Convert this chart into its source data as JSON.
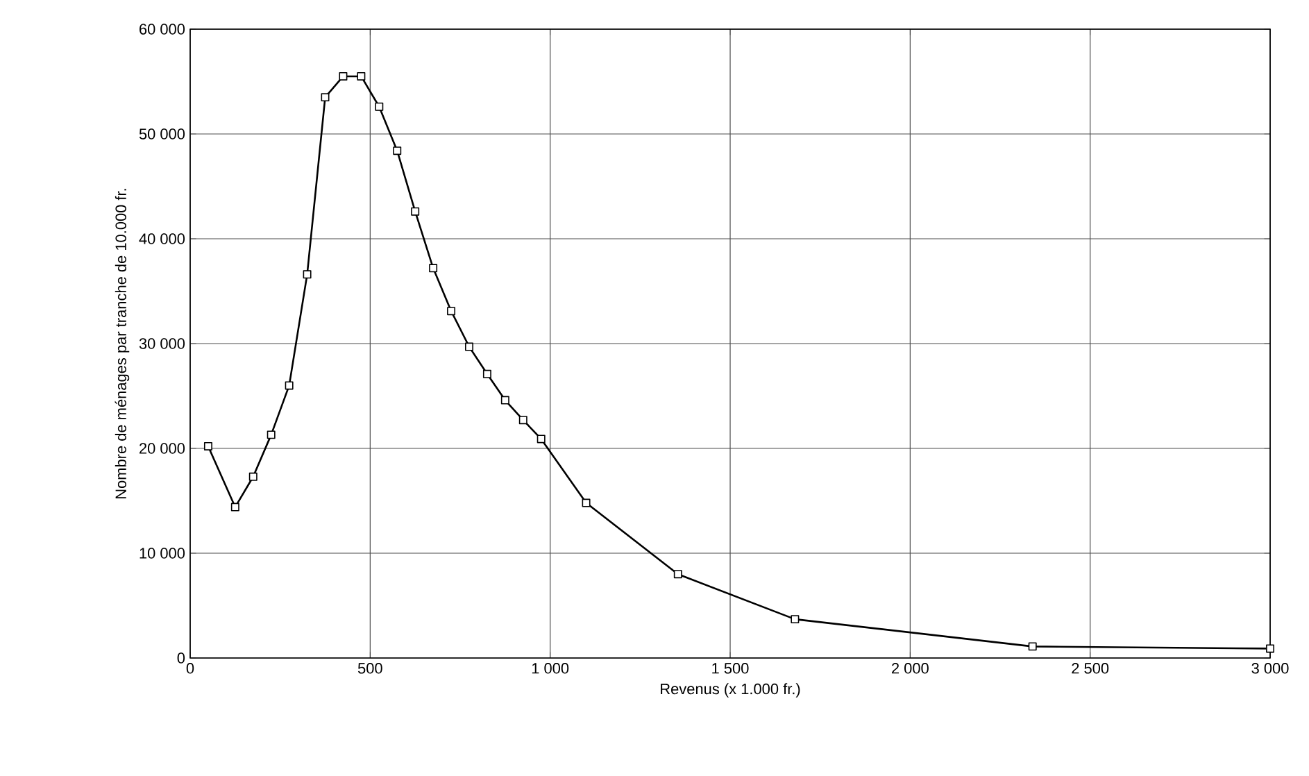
{
  "chart_data": {
    "type": "line",
    "xlabel": "Revenus (x 1.000 fr.)",
    "ylabel": "Nombre de ménages par tranche de 10.000 fr.",
    "x": [
      50,
      125,
      175,
      225,
      275,
      325,
      375,
      425,
      475,
      525,
      575,
      625,
      675,
      725,
      775,
      825,
      875,
      925,
      975,
      1100,
      1355,
      1680,
      2340,
      3000
    ],
    "series": [
      {
        "color": "#000000",
        "values": [
          20200,
          14400,
          17300,
          21300,
          26000,
          36600,
          53500,
          55500,
          55500,
          52600,
          48400,
          42600,
          37200,
          33100,
          29700,
          27100,
          24600,
          22700,
          20900,
          14800,
          8000,
          3700,
          1100,
          900
        ]
      }
    ],
    "xlim": [
      0,
      3000
    ],
    "ylim": [
      0,
      60000
    ],
    "xticks": [
      0,
      500,
      {
        "value": 1000,
        "label": "1 000"
      },
      {
        "value": 1500,
        "label": "1 500"
      },
      {
        "value": 2000,
        "label": "2 000"
      },
      {
        "value": 2500,
        "label": "2 500"
      },
      {
        "value": 3000,
        "label": "3 000"
      }
    ],
    "yticks": [
      0,
      {
        "value": 10000,
        "label": "10 000"
      },
      {
        "value": 20000,
        "label": "20 000"
      },
      {
        "value": 30000,
        "label": "30 000"
      },
      {
        "value": 40000,
        "label": "40 000"
      },
      {
        "value": 50000,
        "label": "50 000"
      },
      {
        "value": 60000,
        "label": "60 000"
      }
    ],
    "grid": true,
    "marker": "square",
    "line_style": "solid"
  }
}
